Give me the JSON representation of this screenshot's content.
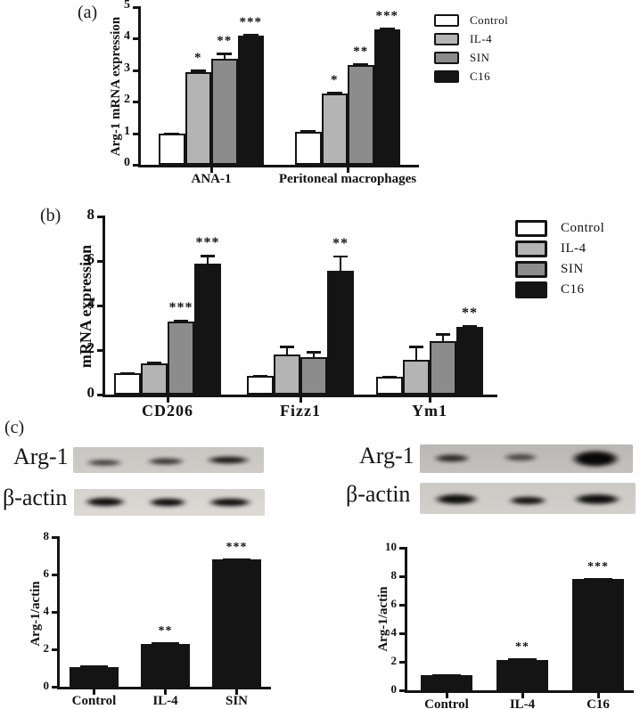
{
  "figure": {
    "panel_a_letter": "(a)",
    "panel_b_letter": "(b)",
    "panel_c_letter": "(c)"
  },
  "colors": {
    "control": "#ffffff",
    "il4": "#b4b4b4",
    "sin": "#8c8c8c",
    "c16": "#141414",
    "axis": "#141414",
    "background": "#ffffff"
  },
  "legends": {
    "a": [
      {
        "label": "Control",
        "color": "#ffffff"
      },
      {
        "label": "IL-4",
        "color": "#b4b4b4"
      },
      {
        "label": "SIN",
        "color": "#8c8c8c"
      },
      {
        "label": "C16",
        "color": "#141414"
      }
    ],
    "b": [
      {
        "label": "Control",
        "color": "#ffffff"
      },
      {
        "label": "IL-4",
        "color": "#b4b4b4"
      },
      {
        "label": "SIN",
        "color": "#8c8c8c"
      },
      {
        "label": "C16",
        "color": "#141414"
      }
    ]
  },
  "panel_c": {
    "left_blot": {
      "arg1_label": "Arg-1",
      "actin_label": "β-actin"
    },
    "right_blot": {
      "arg1_label": "Arg-1",
      "actin_label": "β-actin"
    }
  },
  "chart_data": [
    {
      "id": "a",
      "type": "bar",
      "title": "",
      "ylabel": "Arg-1 mRNA expression",
      "xlabel": "",
      "ylim": [
        0,
        5
      ],
      "yticks": [
        0,
        1,
        2,
        3,
        4,
        5
      ],
      "grid": false,
      "legend_position": "top-right",
      "categories": [
        "ANA-1",
        "Peritoneal macrophages"
      ],
      "series": [
        {
          "name": "Control",
          "color": "#ffffff",
          "values": [
            1.0,
            1.05
          ],
          "errors": [
            0.03,
            0.06
          ],
          "sig": [
            "",
            ""
          ]
        },
        {
          "name": "IL-4",
          "color": "#b4b4b4",
          "values": [
            2.95,
            2.27
          ],
          "errors": [
            0.06,
            0.05
          ],
          "sig": [
            "*",
            "*"
          ]
        },
        {
          "name": "SIN",
          "color": "#8c8c8c",
          "values": [
            3.35,
            3.17
          ],
          "errors": [
            0.2,
            0.06
          ],
          "sig": [
            "**",
            "**"
          ]
        },
        {
          "name": "C16",
          "color": "#141414",
          "values": [
            4.1,
            4.3
          ],
          "errors": [
            0.04,
            0.05
          ],
          "sig": [
            "***",
            "***"
          ]
        }
      ]
    },
    {
      "id": "b",
      "type": "bar",
      "title": "",
      "ylabel": "mRNA expression",
      "xlabel": "",
      "ylim": [
        0,
        8
      ],
      "yticks": [
        0,
        2,
        4,
        6,
        8
      ],
      "grid": false,
      "legend_position": "right",
      "categories": [
        "CD206",
        "Fizz1",
        "Ym1"
      ],
      "series": [
        {
          "name": "Control",
          "color": "#ffffff",
          "values": [
            0.95,
            0.85,
            0.8
          ],
          "errors": [
            0.05,
            0.04,
            0.05
          ],
          "sig": [
            "",
            "",
            ""
          ]
        },
        {
          "name": "IL-4",
          "color": "#b4b4b4",
          "values": [
            1.4,
            1.8,
            1.55
          ],
          "errors": [
            0.07,
            0.4,
            0.65
          ],
          "sig": [
            "",
            "",
            ""
          ]
        },
        {
          "name": "SIN",
          "color": "#8c8c8c",
          "values": [
            3.3,
            1.7,
            2.4
          ],
          "errors": [
            0.06,
            0.25,
            0.35
          ],
          "sig": [
            "***",
            "",
            ""
          ]
        },
        {
          "name": "C16",
          "color": "#141414",
          "values": [
            5.9,
            5.55,
            3.05
          ],
          "errors": [
            0.38,
            0.7,
            0.06
          ],
          "sig": [
            "***",
            "**",
            "**"
          ]
        }
      ]
    },
    {
      "id": "cl",
      "type": "bar",
      "title": "",
      "ylabel": "Arg-1/actin",
      "xlabel": "",
      "ylim": [
        0,
        8
      ],
      "yticks": [
        0,
        2,
        4,
        6,
        8
      ],
      "grid": false,
      "legend_position": "none",
      "categories": [
        "Control",
        "IL-4",
        "SIN"
      ],
      "series": [
        {
          "name": "Arg-1/actin",
          "color": "#141414",
          "values": [
            1.05,
            2.3,
            6.8
          ],
          "errors": [
            0.1,
            0.06,
            0.07
          ],
          "sig": [
            "",
            "**",
            "***"
          ]
        }
      ]
    },
    {
      "id": "cr",
      "type": "bar",
      "title": "",
      "ylabel": "Arg-1/actin",
      "xlabel": "",
      "ylim": [
        0,
        10
      ],
      "yticks": [
        0,
        2,
        4,
        6,
        8,
        10
      ],
      "grid": false,
      "legend_position": "none",
      "categories": [
        "Control",
        "IL-4",
        "C16"
      ],
      "series": [
        {
          "name": "Arg-1/actin",
          "color": "#141414",
          "values": [
            1.05,
            2.15,
            7.8
          ],
          "errors": [
            0.07,
            0.08,
            0.08
          ],
          "sig": [
            "",
            "**",
            "***"
          ]
        }
      ]
    }
  ]
}
